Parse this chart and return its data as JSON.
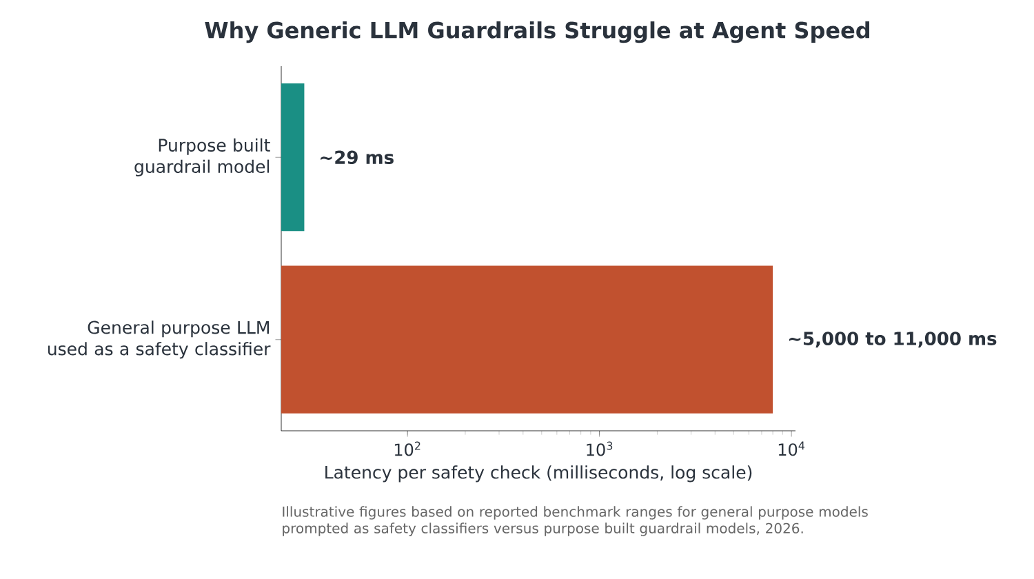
{
  "chart_data": {
    "type": "bar",
    "orientation": "horizontal",
    "title": "Why Generic LLM Guardrails Struggle at Agent Speed",
    "xlabel": "Latency per safety check (milliseconds, log scale)",
    "categories": [
      "Purpose built guardrail model",
      "General purpose LLM used as a safety classifier"
    ],
    "values": [
      29,
      8000
    ],
    "colors": [
      "#1a8f84",
      "#c1512f"
    ],
    "value_labels": [
      "~29 ms",
      "~5,000 to 11,000 ms"
    ],
    "log": "x",
    "xlim": [
      22,
      10500
    ],
    "xticks": [
      {
        "value": 100,
        "label": "10$^{2}$"
      },
      {
        "value": 1000,
        "label": "10$^{3}$"
      },
      {
        "value": 10000,
        "label": "10$^{4}$"
      }
    ],
    "grid": false,
    "annotations": [
      "Illustrative figures based on reported benchmark ranges for general purpose models prompted as safety classifiers versus purpose built guardrail models, 2026."
    ]
  }
}
